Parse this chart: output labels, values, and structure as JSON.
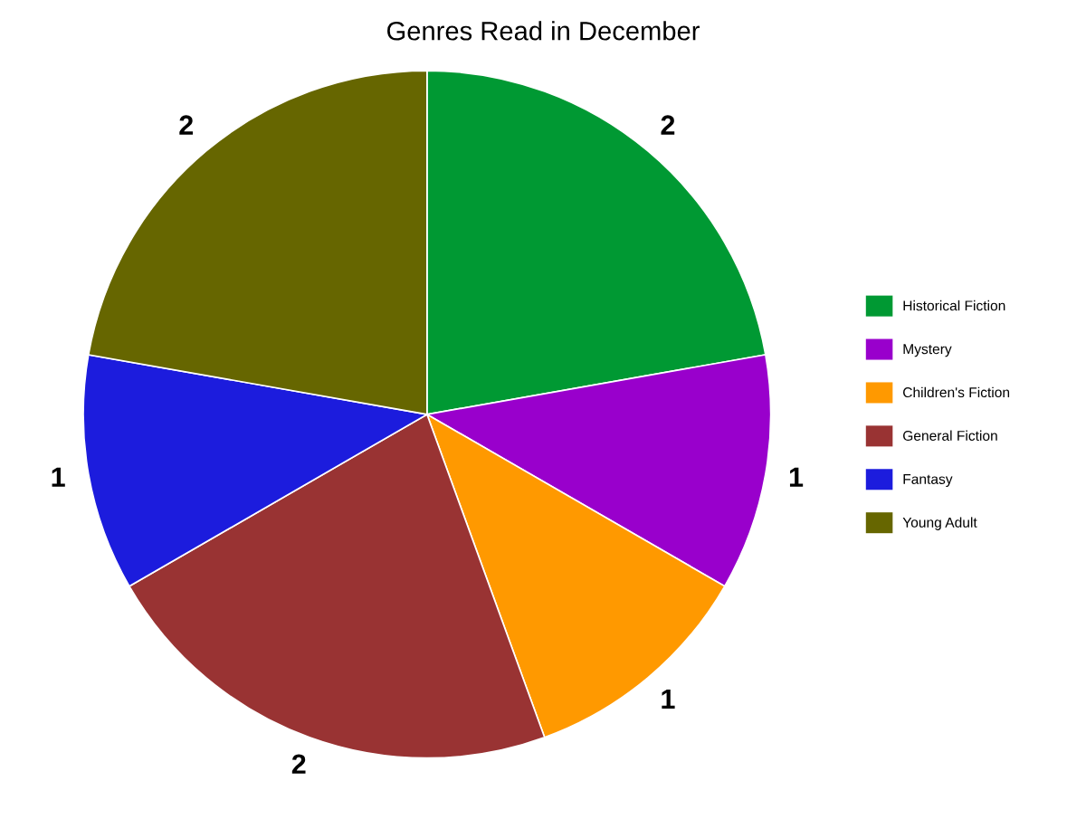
{
  "chart_data": {
    "type": "pie",
    "title": "Genres Read in December",
    "categories": [
      "Historical Fiction",
      "Mystery",
      "Children's Fiction",
      "General Fiction",
      "Fantasy",
      "Young Adult"
    ],
    "values": [
      2,
      1,
      1,
      2,
      1,
      2
    ],
    "colors": [
      "#009933",
      "#9900cc",
      "#ff9900",
      "#993333",
      "#1c1cdd",
      "#666600"
    ],
    "data_labels": true,
    "legend": "right"
  }
}
